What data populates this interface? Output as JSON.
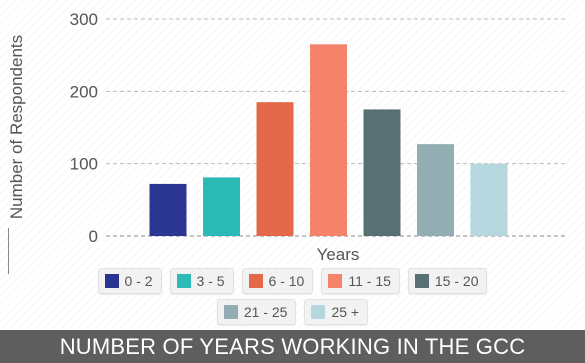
{
  "chart_data": {
    "type": "bar",
    "title": "NUMBER OF YEARS WORKING IN THE GCC",
    "xlabel": "Years",
    "ylabel": "Number of Respondents",
    "ylim": [
      0,
      300
    ],
    "yticks": [
      0,
      100,
      200,
      300
    ],
    "grid": true,
    "legend_position": "bottom",
    "categories": [
      "0 - 2",
      "3 - 5",
      "6 - 10",
      "11 - 15",
      "15 - 20",
      "21 - 25",
      "25 +"
    ],
    "values": [
      72,
      81,
      185,
      265,
      175,
      127,
      100
    ],
    "colors": [
      "#2b3592",
      "#2cbab7",
      "#e4694a",
      "#f5826b",
      "#586f74",
      "#93aeb2",
      "#b6d7de"
    ]
  },
  "legend_rows": [
    [
      {
        "label": "0 - 2",
        "color": "#2b3592"
      },
      {
        "label": "3 - 5",
        "color": "#2cbab7"
      },
      {
        "label": "6 - 10",
        "color": "#e4694a"
      },
      {
        "label": "11 - 15",
        "color": "#f5826b"
      },
      {
        "label": "15 - 20",
        "color": "#586f74"
      }
    ],
    [
      {
        "label": "21 - 25",
        "color": "#93aeb2"
      },
      {
        "label": "25 +",
        "color": "#b6d7de"
      }
    ]
  ]
}
